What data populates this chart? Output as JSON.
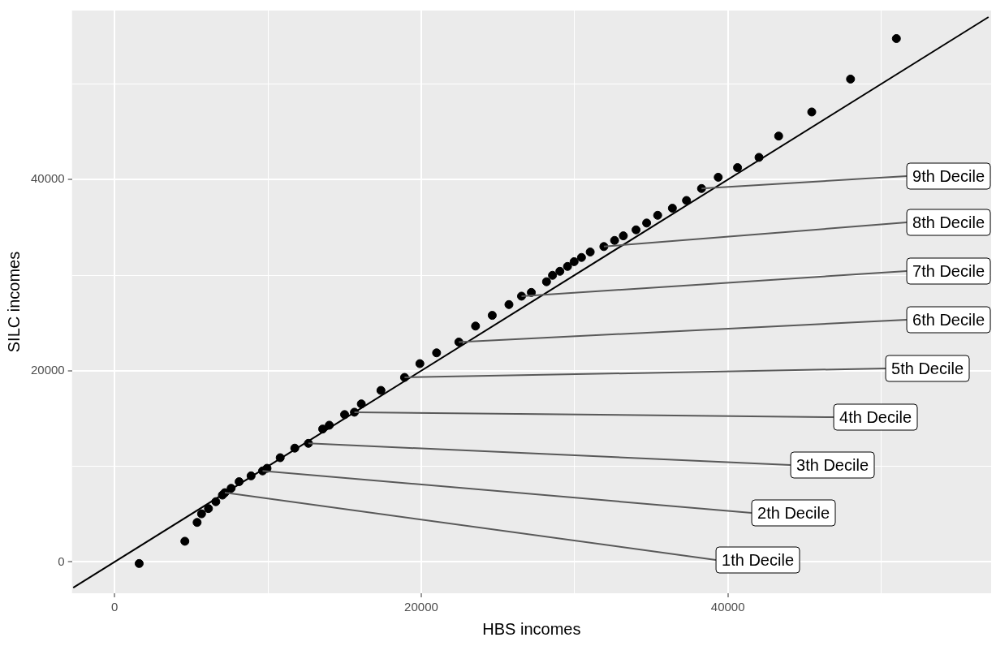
{
  "chart_data": {
    "type": "scatter",
    "xlabel": "HBS incomes",
    "ylabel": "SILC incomes",
    "xlim": [
      -2780,
      57170
    ],
    "ylim": [
      -3280,
      57680
    ],
    "xticks": [
      0,
      {
        "value": 10000,
        "label": null
      },
      20000,
      {
        "value": 30000,
        "label": null
      },
      40000,
      {
        "value": 50000,
        "label": null
      }
    ],
    "yticks": [
      0,
      {
        "value": 10000,
        "label": null
      },
      20000,
      {
        "value": 30000,
        "label": null
      },
      40000,
      {
        "value": 50000,
        "label": null
      }
    ],
    "grid": true,
    "legend": false,
    "marker": "circle",
    "series": [
      {
        "color": "#000000",
        "x": [
          1600,
          4580,
          5380,
          5670,
          6120,
          6600,
          7030,
          7190,
          7600,
          8120,
          8900,
          9650,
          9940,
          10800,
          11750,
          12640,
          13570,
          14000,
          15000,
          15640,
          16090,
          17370,
          18910,
          19910,
          21000,
          22450,
          23540,
          24630,
          25720,
          26540,
          27180,
          28170,
          28560,
          29040,
          29540,
          29970,
          30450,
          31020,
          31910,
          32610,
          33180,
          34010,
          34700,
          35420,
          36380,
          37300,
          38280,
          39370,
          40630,
          42030,
          43310,
          45470,
          48000,
          50990
        ],
        "values": [
          -170,
          2160,
          4130,
          5030,
          5580,
          6300,
          6990,
          7240,
          7700,
          8390,
          9000,
          9520,
          9790,
          10900,
          11900,
          12400,
          13900,
          14300,
          15410,
          15660,
          16530,
          17940,
          19300,
          20740,
          21870,
          23000,
          24670,
          25790,
          26920,
          27800,
          28190,
          29310,
          29980,
          30400,
          30910,
          31410,
          31850,
          32420,
          32990,
          33630,
          34110,
          34740,
          35450,
          36260,
          37000,
          37810,
          39060,
          40240,
          41250,
          42320,
          44550,
          47070,
          50510,
          54750
        ]
      },
      {
        "type": "line",
        "color": "#000000",
        "marker": "none",
        "x": [
          -2700,
          57000
        ],
        "values": [
          -2700,
          57000
        ]
      }
    ],
    "annotations": [
      {
        "text": "1th Decile",
        "x": 7190,
        "y": 7240
      },
      {
        "text": "2th Decile",
        "x": 9650,
        "y": 9520
      },
      {
        "text": "3th Decile",
        "x": 12640,
        "y": 12400
      },
      {
        "text": "4th Decile",
        "x": 15640,
        "y": 15660
      },
      {
        "text": "5th Decile",
        "x": 18910,
        "y": 19300
      },
      {
        "text": "6th Decile",
        "x": 22450,
        "y": 23000
      },
      {
        "text": "7th Decile",
        "x": 26540,
        "y": 27800
      },
      {
        "text": "8th Decile",
        "x": 31910,
        "y": 32990
      },
      {
        "text": "9th Decile",
        "x": 38280,
        "y": 39060
      }
    ]
  }
}
